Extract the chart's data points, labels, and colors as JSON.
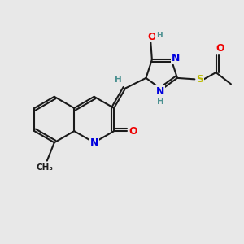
{
  "bg_color": "#e8e8e8",
  "bond_color": "#1a1a1a",
  "bond_width": 1.5,
  "N_color": "#0000dd",
  "O_color": "#ee0000",
  "S_color": "#bbbb00",
  "H_color": "#4a9090",
  "C_color": "#1a1a1a",
  "font_size": 9.0,
  "small_font": 7.5,
  "figsize": [
    3.0,
    3.0
  ],
  "dpi": 100,
  "xlim": [
    0,
    10
  ],
  "ylim": [
    0,
    10
  ]
}
